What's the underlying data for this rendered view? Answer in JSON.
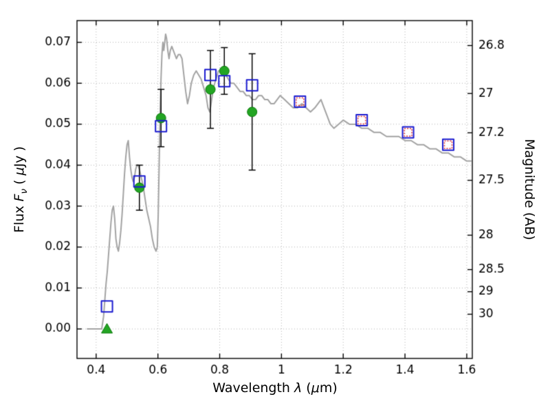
{
  "labels": {
    "xlabel": {
      "pre": "Wavelength ",
      "lambda": "λ",
      "mid": " (",
      "mu": "μ",
      "post": "m)"
    },
    "ylabel_left": {
      "pre": "Flux ",
      "f": "F",
      "nu": "ν",
      "mid": " ( ",
      "mu": "μ",
      "post": "Jy )"
    },
    "ylabel_right": "Magnitude (AB)"
  },
  "chart_data": {
    "type": "line+scatter",
    "title": "",
    "xlabel": "Wavelength λ (μm)",
    "ylabel_left": "Flux Fν ( μJy )",
    "ylabel_right": "Magnitude (AB)",
    "xlim": [
      0.338,
      1.618
    ],
    "ylim": [
      -0.0072,
      0.0753
    ],
    "grid": {
      "visible": true,
      "style": "dotted"
    },
    "colors": {
      "background": "#ffffff",
      "grid": "#b3b3b3",
      "frame": "#000000",
      "spectrum": "#a3a3a3",
      "observed": "#23a523",
      "observed_edge": "#0b7a0b",
      "model_square": "#1b1bd0",
      "red_square": "#e03030",
      "errorbar": "#000000"
    },
    "x_ticks": [
      {
        "v": 0.4,
        "label": "0.4"
      },
      {
        "v": 0.6,
        "label": "0.6"
      },
      {
        "v": 0.8,
        "label": "0.8"
      },
      {
        "v": 1.0,
        "label": "1"
      },
      {
        "v": 1.2,
        "label": "1.2"
      },
      {
        "v": 1.4,
        "label": "1.4"
      },
      {
        "v": 1.6,
        "label": "1.6"
      }
    ],
    "y_ticks_left": [
      {
        "v": 0.0,
        "label": "0.00"
      },
      {
        "v": 0.01,
        "label": "0.01"
      },
      {
        "v": 0.02,
        "label": "0.02"
      },
      {
        "v": 0.03,
        "label": "0.03"
      },
      {
        "v": 0.04,
        "label": "0.04"
      },
      {
        "v": 0.05,
        "label": "0.05"
      },
      {
        "v": 0.06,
        "label": "0.06"
      },
      {
        "v": 0.07,
        "label": "0.07"
      }
    ],
    "y_ticks_right": [
      {
        "flux": 0.0692,
        "label": "26.8"
      },
      {
        "flux": 0.0575,
        "label": "27"
      },
      {
        "flux": 0.0479,
        "label": "27.2"
      },
      {
        "flux": 0.0363,
        "label": "27.5"
      },
      {
        "flux": 0.0229,
        "label": "28"
      },
      {
        "flux": 0.0145,
        "label": "28.5"
      },
      {
        "flux": 0.0091,
        "label": "29"
      },
      {
        "flux": 0.0036,
        "label": "30"
      }
    ],
    "series": [
      {
        "name": "model-spectrum",
        "type": "line",
        "linewidth": 2,
        "color": "#a3a3a3",
        "x": [
          0.37,
          0.4,
          0.418,
          0.424,
          0.428,
          0.432,
          0.436,
          0.44,
          0.444,
          0.448,
          0.452,
          0.456,
          0.46,
          0.464,
          0.468,
          0.472,
          0.476,
          0.48,
          0.484,
          0.488,
          0.492,
          0.496,
          0.5,
          0.504,
          0.508,
          0.512,
          0.516,
          0.52,
          0.524,
          0.528,
          0.532,
          0.536,
          0.54,
          0.546,
          0.552,
          0.558,
          0.564,
          0.57,
          0.576,
          0.582,
          0.588,
          0.594,
          0.598,
          0.601,
          0.604,
          0.607,
          0.61,
          0.613,
          0.616,
          0.619,
          0.622,
          0.625,
          0.628,
          0.632,
          0.636,
          0.64,
          0.645,
          0.65,
          0.655,
          0.66,
          0.666,
          0.672,
          0.678,
          0.684,
          0.69,
          0.696,
          0.702,
          0.708,
          0.716,
          0.724,
          0.732,
          0.74,
          0.748,
          0.756,
          0.762,
          0.768,
          0.774,
          0.78,
          0.788,
          0.796,
          0.804,
          0.812,
          0.82,
          0.828,
          0.836,
          0.846,
          0.856,
          0.866,
          0.876,
          0.886,
          0.896,
          0.906,
          0.916,
          0.926,
          0.936,
          0.946,
          0.956,
          0.966,
          0.976,
          0.986,
          0.996,
          1.01,
          1.024,
          1.038,
          1.052,
          1.066,
          1.08,
          1.094,
          1.108,
          1.118,
          1.128,
          1.138,
          1.148,
          1.158,
          1.17,
          1.185,
          1.2,
          1.22,
          1.24,
          1.26,
          1.28,
          1.3,
          1.32,
          1.34,
          1.36,
          1.38,
          1.4,
          1.42,
          1.44,
          1.46,
          1.48,
          1.5,
          1.52,
          1.54,
          1.56,
          1.58,
          1.6,
          1.615
        ],
        "y": [
          0.0,
          0.0,
          0.0,
          0.003,
          0.007,
          0.011,
          0.014,
          0.018,
          0.022,
          0.026,
          0.029,
          0.03,
          0.027,
          0.022,
          0.02,
          0.019,
          0.021,
          0.024,
          0.028,
          0.033,
          0.038,
          0.042,
          0.045,
          0.046,
          0.042,
          0.039,
          0.037,
          0.036,
          0.037,
          0.039,
          0.04,
          0.04,
          0.039,
          0.037,
          0.035,
          0.032,
          0.029,
          0.027,
          0.025,
          0.022,
          0.02,
          0.019,
          0.02,
          0.028,
          0.04,
          0.052,
          0.061,
          0.067,
          0.07,
          0.068,
          0.07,
          0.072,
          0.071,
          0.068,
          0.066,
          0.068,
          0.069,
          0.068,
          0.067,
          0.066,
          0.067,
          0.067,
          0.066,
          0.062,
          0.058,
          0.055,
          0.057,
          0.06,
          0.062,
          0.063,
          0.062,
          0.061,
          0.059,
          0.057,
          0.054,
          0.053,
          0.056,
          0.059,
          0.061,
          0.063,
          0.063,
          0.062,
          0.062,
          0.061,
          0.06,
          0.06,
          0.059,
          0.058,
          0.058,
          0.057,
          0.057,
          0.056,
          0.056,
          0.057,
          0.057,
          0.056,
          0.056,
          0.055,
          0.055,
          0.056,
          0.057,
          0.056,
          0.055,
          0.054,
          0.054,
          0.055,
          0.054,
          0.053,
          0.054,
          0.055,
          0.056,
          0.054,
          0.052,
          0.05,
          0.049,
          0.05,
          0.051,
          0.05,
          0.05,
          0.049,
          0.049,
          0.048,
          0.048,
          0.047,
          0.047,
          0.047,
          0.046,
          0.046,
          0.045,
          0.045,
          0.044,
          0.044,
          0.043,
          0.043,
          0.042,
          0.042,
          0.041,
          0.041
        ]
      },
      {
        "name": "observed-photometry",
        "type": "scatter",
        "marker": "circle",
        "color": "#23a523",
        "edge": "#0b7a0b",
        "size": 7,
        "errorbar_color": "#000000",
        "x": [
          0.54,
          0.61,
          0.77,
          0.815,
          0.905
        ],
        "y": [
          0.0345,
          0.0515,
          0.0585,
          0.063,
          0.053
        ],
        "yerr": [
          0.0055,
          0.007,
          0.0095,
          0.0057,
          0.0142
        ]
      },
      {
        "name": "upper-limit",
        "type": "scatter",
        "marker": "triangle-up",
        "color": "#23a523",
        "edge": "#0b7a0b",
        "size": 8,
        "x": [
          0.435
        ],
        "y": [
          0.0
        ]
      },
      {
        "name": "model-photometry",
        "type": "scatter",
        "marker": "square-open",
        "color": "#1b1bd0",
        "size": 8,
        "linewidth": 2,
        "x": [
          0.435,
          0.54,
          0.61,
          0.77,
          0.815,
          0.905,
          1.06,
          1.26,
          1.41,
          1.54
        ],
        "y": [
          0.0055,
          0.036,
          0.0495,
          0.062,
          0.0605,
          0.0595,
          0.0555,
          0.051,
          0.048,
          0.045
        ]
      },
      {
        "name": "observed-photometry-ir",
        "type": "scatter",
        "marker": "square-open-dotted",
        "color": "#e03030",
        "size": 5.5,
        "linewidth": 1.5,
        "x": [
          1.06,
          1.26,
          1.41,
          1.54
        ],
        "y": [
          0.0555,
          0.051,
          0.048,
          0.045
        ]
      }
    ]
  }
}
